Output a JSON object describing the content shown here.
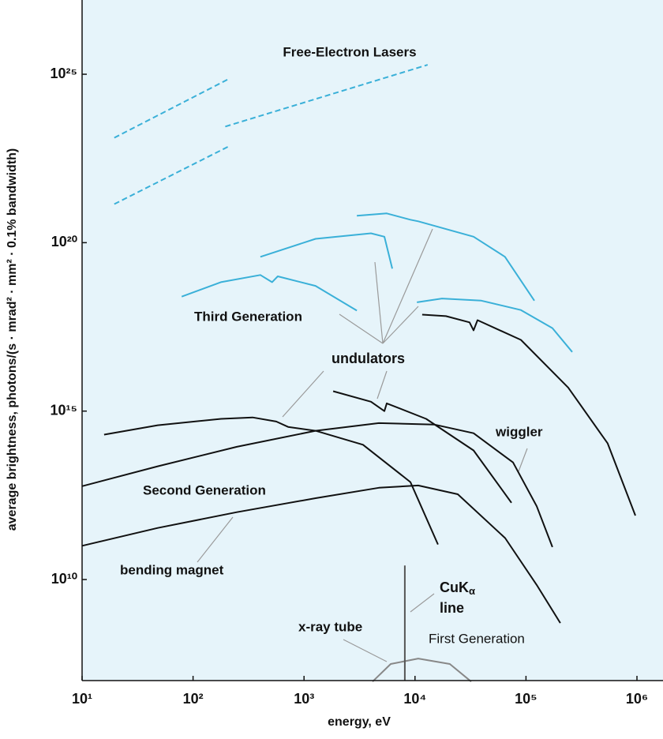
{
  "chart_data": {
    "type": "line",
    "xlabel": "energy, eV",
    "ylabel": "average brightness, photons/(s · mrad² · mm² · 0.1% bandwidth)",
    "xscale": "log",
    "yscale": "log",
    "xlim": [
      10,
      1000000
    ],
    "ylim": [
      10000000,
      1.6e+27
    ],
    "xticks": [
      {
        "value": 10,
        "label": "10¹"
      },
      {
        "value": 100,
        "label": "10²"
      },
      {
        "value": 1000,
        "label": "10³"
      },
      {
        "value": 10000,
        "label": "10⁴"
      },
      {
        "value": 100000,
        "label": "10⁵"
      },
      {
        "value": 1000000,
        "label": "10⁶"
      }
    ],
    "yticks": [
      {
        "value": 10000000000.0,
        "label": "10¹⁰"
      },
      {
        "value": 1000000000000000.0,
        "label": "10¹⁵"
      },
      {
        "value": 1e+20,
        "label": "10²⁰"
      },
      {
        "value": 1e+25,
        "label": "10²⁵"
      }
    ],
    "annotations": [
      "Free-Electron Lasers",
      "Third Generation",
      "undulators",
      "wiggler",
      "Second Generation",
      "bending magnet",
      "CuK",
      "α",
      "line",
      "x-ray tube",
      "First Generation"
    ],
    "series": [
      {
        "color": "#3ab0d8",
        "dashed": true,
        "x": [
          19.5,
          209
        ],
        "values": [
          1.3e+23,
          7.2e+24
        ]
      },
      {
        "color": "#3ab0d8",
        "dashed": true,
        "x": [
          19.5,
          209
        ],
        "values": [
          1.4e+21,
          7.2e+22
        ]
      },
      {
        "color": "#3ab0d8",
        "dashed": true,
        "x": [
          195,
          13000
        ],
        "values": [
          2.8e+23,
          1.9e+25
        ]
      },
      {
        "color": "#3ab0d8",
        "x": [
          79,
          178,
          404,
          515,
          580,
          1270,
          2990
        ],
        "values": [
          2.5e+18,
          6.7e+18,
          1.1e+19,
          6.7e+18,
          1e+19,
          5.2e+18,
          9.6e+17
        ]
      },
      {
        "color": "#3ab0d8",
        "x": [
          404,
          1270,
          4010,
          5300,
          6240
        ],
        "values": [
          3.8e+19,
          1.3e+20,
          1.9e+20,
          1.5e+20,
          1.7e+19
        ]
      },
      {
        "color": "#3ab0d8",
        "x": [
          2990,
          5560,
          9100,
          10700,
          33700,
          64700,
          119000
        ],
        "values": [
          6.3e+20,
          7.4e+20,
          4.8e+20,
          4.3e+20,
          1.5e+20,
          3.8e+19,
          1.9e+18
        ]
      },
      {
        "color": "#3ab0d8",
        "x": [
          10400,
          17500,
          39600,
          90000,
          173000,
          261000
        ],
        "values": [
          1.7e+18,
          2.2e+18,
          1.9e+18,
          1e+18,
          2.9e+17,
          5.7e+16
        ]
      },
      {
        "color": "#111111",
        "x": [
          11600,
          19000,
          31000,
          33700,
          36600,
          90000,
          240000,
          545000,
          968000
        ],
        "values": [
          7.3e+17,
          6.6e+17,
          4.3e+17,
          2.5e+17,
          5e+17,
          1.3e+17,
          5000000000000000.0,
          110000000000000.0,
          790000000000.0
        ]
      },
      {
        "color": "#111111",
        "x": [
          1830,
          4010,
          5300,
          5560,
          12600,
          33700,
          74000
        ],
        "values": [
          3900000000000000.0,
          1900000000000000.0,
          1000000000000000.0,
          1700000000000000.0,
          590000000000000.0,
          68000000000000.0,
          1900000000000.0
        ]
      },
      {
        "color": "#111111",
        "x": [
          15.8,
          48,
          179,
          344,
          562,
          718,
          1270,
          3400,
          9100,
          16100
        ],
        "values": [
          200000000000000.0,
          380000000000000.0,
          590000000000000.0,
          650000000000000.0,
          490000000000000.0,
          340000000000000.0,
          260000000000000.0,
          100000000000000.0,
          7800000000000.0,
          110000000000.0
        ]
      },
      {
        "color": "#111111",
        "x": [
          10,
          48,
          248,
          1270,
          4720,
          14900,
          33700,
          76400,
          125000,
          173000
        ],
        "values": [
          5900000000000.0,
          23000000000000.0,
          87000000000000.0,
          260000000000000.0,
          440000000000000.0,
          400000000000000.0,
          220000000000000.0,
          30000000000000.0,
          1500000000000.0,
          92000000000.0
        ]
      },
      {
        "color": "#111111",
        "x": [
          10,
          48,
          248,
          1270,
          4720,
          10700,
          24300,
          64900,
          125000,
          204000
        ],
        "values": [
          100000000000.0,
          340000000000.0,
          1000000000000.0,
          2600000000000.0,
          5300000000000.0,
          6200000000000.0,
          3400000000000.0,
          170000000000.0,
          6900000000.0,
          510000000.0
        ]
      },
      {
        "color": "#888888",
        "x": [
          4140,
          6040,
          10700,
          20600,
          32100
        ],
        "values": [
          9300000.0,
          31000000.0,
          45000000.0,
          31000000.0,
          9300000.0
        ]
      },
      {
        "color": "#555555",
        "x": [
          8100,
          8100
        ],
        "values": [
          10000000.0,
          26000000000.0
        ]
      }
    ]
  }
}
